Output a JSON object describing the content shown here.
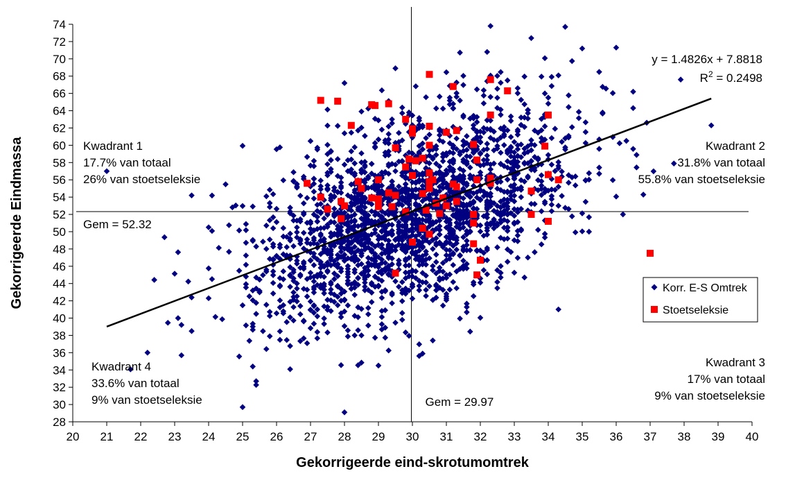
{
  "chart_data": {
    "type": "scatter",
    "xlabel": "Gekorrigeerde eind-skrotumomtrek",
    "ylabel": "Gekorrigeerde Eindmassa",
    "xlim": [
      20,
      40
    ],
    "ylim": [
      28,
      74
    ],
    "x_ticks": [
      20,
      21,
      22,
      23,
      24,
      25,
      26,
      27,
      28,
      29,
      30,
      31,
      32,
      33,
      34,
      35,
      36,
      37,
      38,
      39,
      40
    ],
    "y_ticks": [
      28,
      30,
      32,
      34,
      36,
      38,
      40,
      42,
      44,
      46,
      48,
      50,
      52,
      54,
      56,
      58,
      60,
      62,
      64,
      66,
      68,
      70,
      72,
      74
    ],
    "grid": false,
    "legend": {
      "position": "right",
      "entries": [
        "Korr. E-S Omtrek",
        "Stoetseleksie"
      ]
    },
    "series": [
      {
        "name": "Korr. E-S Omtrek",
        "marker": "diamond",
        "color": "#000080",
        "generated_cloud": {
          "count": 2200,
          "x_mean": 29.97,
          "y_mean": 52.32,
          "x_sd": 2.3,
          "y_sd": 6.2,
          "correlation": 0.5,
          "seed": 7
        },
        "points": [
          [
            32.3,
            73.8
          ],
          [
            34.5,
            73.7
          ],
          [
            33.5,
            72.4
          ],
          [
            36,
            71.3
          ],
          [
            35,
            71.2
          ],
          [
            22.2,
            36
          ],
          [
            28,
            29.1
          ],
          [
            25,
            29.7
          ],
          [
            25.4,
            32.7
          ],
          [
            25.3,
            34.4
          ],
          [
            38.8,
            62.3
          ],
          [
            37.9,
            67.6
          ],
          [
            36.5,
            66.2
          ],
          [
            36.5,
            64.3
          ],
          [
            21,
            57
          ],
          [
            23.5,
            54.2
          ],
          [
            24,
            42.3
          ],
          [
            23.5,
            38.5
          ],
          [
            36.2,
            52
          ],
          [
            35.2,
            50
          ],
          [
            25.8,
            37.9
          ]
        ]
      },
      {
        "name": "Stoetseleksie",
        "marker": "square",
        "color": "#ff0000",
        "points": [
          [
            26.9,
            55.6
          ],
          [
            27.3,
            54
          ],
          [
            27.5,
            52.6
          ],
          [
            27.3,
            65.2
          ],
          [
            27.8,
            65.1
          ],
          [
            28.2,
            62.3
          ],
          [
            27.9,
            53.5
          ],
          [
            27.9,
            51.5
          ],
          [
            28,
            53
          ],
          [
            28.4,
            55.8
          ],
          [
            28.5,
            55
          ],
          [
            28.8,
            53.9
          ],
          [
            28.8,
            64.7
          ],
          [
            28.9,
            64.6
          ],
          [
            29,
            56
          ],
          [
            29,
            53.4
          ],
          [
            29,
            52.9
          ],
          [
            29,
            53.8
          ],
          [
            29.3,
            54.5
          ],
          [
            29.3,
            64.8
          ],
          [
            29.4,
            52.9
          ],
          [
            29.5,
            59.7
          ],
          [
            29.5,
            54.2
          ],
          [
            29.5,
            45.2
          ],
          [
            29.8,
            63
          ],
          [
            29.8,
            57.5
          ],
          [
            29.8,
            52.3
          ],
          [
            29.9,
            58.4
          ],
          [
            30,
            61.9
          ],
          [
            30,
            61.4
          ],
          [
            30,
            48.8
          ],
          [
            30,
            56.5
          ],
          [
            30.1,
            58.2
          ],
          [
            30.3,
            58.5
          ],
          [
            30.3,
            54.4
          ],
          [
            30.3,
            50.4
          ],
          [
            30.4,
            52.5
          ],
          [
            30.5,
            68.2
          ],
          [
            30.5,
            62.2
          ],
          [
            30.5,
            60
          ],
          [
            30.5,
            56.8
          ],
          [
            30.5,
            55.8
          ],
          [
            30.5,
            55
          ],
          [
            30.5,
            49.7
          ],
          [
            30.6,
            56
          ],
          [
            30.7,
            53.3
          ],
          [
            30.8,
            52.1
          ],
          [
            30.9,
            53.9
          ],
          [
            31,
            61.5
          ],
          [
            31,
            53
          ],
          [
            31.2,
            66.8
          ],
          [
            31.3,
            61.7
          ],
          [
            31.2,
            55.5
          ],
          [
            31.3,
            55.2
          ],
          [
            31.3,
            53.5
          ],
          [
            31.8,
            60.1
          ],
          [
            31.8,
            52
          ],
          [
            31.8,
            51
          ],
          [
            31.8,
            48.6
          ],
          [
            31.9,
            58.3
          ],
          [
            31.9,
            56
          ],
          [
            31.9,
            45
          ],
          [
            32,
            46.7
          ],
          [
            32.3,
            67.6
          ],
          [
            32.3,
            63.5
          ],
          [
            32.3,
            56.2
          ],
          [
            32.3,
            55.6
          ],
          [
            32.8,
            66.3
          ],
          [
            33.5,
            54.7
          ],
          [
            33.5,
            52
          ],
          [
            33.9,
            59.9
          ],
          [
            34,
            63.5
          ],
          [
            34,
            56.6
          ],
          [
            34,
            51.2
          ],
          [
            34.3,
            56
          ],
          [
            37,
            47.5
          ]
        ]
      }
    ],
    "reference_lines": [
      {
        "orientation": "vertical",
        "x": 29.97,
        "label": "Gem = 29.97"
      },
      {
        "orientation": "horizontal",
        "y": 52.32,
        "label": "Gem = 52.32"
      }
    ],
    "trendline": {
      "equation": "y = 1.4826x + 7.8818",
      "r2_prefix": "R",
      "r2_sup": "2",
      "r2_value": " = 0.2498",
      "slope": 1.4826,
      "intercept": 7.8818,
      "x_from": 21,
      "x_to": 38.8
    },
    "quadrants": [
      {
        "lines": [
          "Kwadrant 1",
          "17.7% van totaal",
          "26% van stoetseleksie"
        ],
        "align": "left"
      },
      {
        "lines": [
          "Kwadrant 2",
          "31.8% van totaal",
          "55.8% van stoetseleksie"
        ],
        "align": "right"
      },
      {
        "lines": [
          "Kwadrant 3",
          "17% van totaal",
          "9% van stoetseleksie"
        ],
        "align": "right"
      },
      {
        "lines": [
          "Kwadrant 4",
          "33.6% van totaal",
          "9% van stoetseleksie"
        ],
        "align": "left"
      }
    ]
  }
}
